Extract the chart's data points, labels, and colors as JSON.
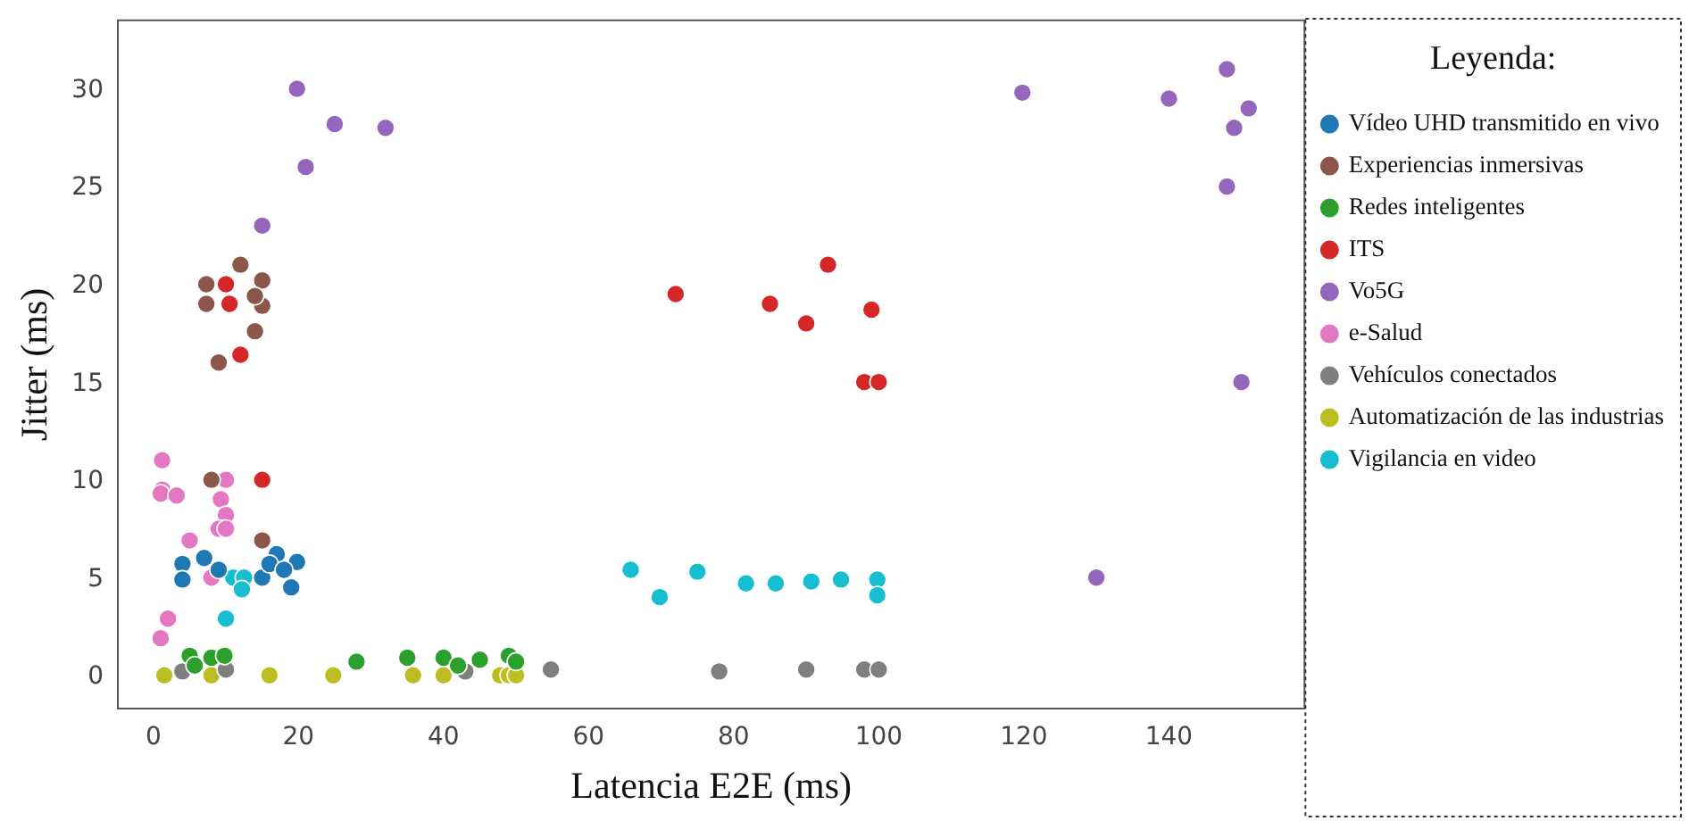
{
  "chart_data": {
    "type": "scatter",
    "xlabel": "Latencia E2E (ms)",
    "ylabel": "Jitter (ms)",
    "legend_title": "Leyenda:",
    "legend": "right",
    "grid": false,
    "marker": "circle",
    "xlim": [
      -4.9,
      158.7
    ],
    "ylim": [
      -1.6,
      33.6
    ],
    "xticks": [
      0,
      20,
      40,
      60,
      80,
      100,
      120,
      140
    ],
    "yticks": [
      0,
      5,
      10,
      15,
      20,
      25,
      30
    ],
    "series": [
      {
        "name": "Vídeo UHD transmitido en vivo",
        "color": "#1f77b4",
        "x": [
          4,
          7,
          4,
          9,
          15,
          17,
          16,
          19.8,
          19,
          18
        ],
        "values": [
          5.8,
          6.1,
          5.0,
          5.5,
          5.1,
          6.3,
          5.8,
          5.9,
          4.6,
          5.5
        ]
      },
      {
        "name": "Experiencias inmersivas",
        "color": "#8c564b",
        "x": [
          12,
          7.3,
          15,
          7.3,
          15,
          14,
          14,
          9,
          8,
          15
        ],
        "values": [
          21.1,
          20.1,
          20.3,
          19.1,
          19,
          19.5,
          17.7,
          16.1,
          10.1,
          7.0
        ]
      },
      {
        "name": "Redes inteligentes",
        "color": "#2ca02c",
        "x": [
          5,
          5.7,
          8,
          9.8,
          28,
          35,
          40,
          42,
          45,
          49,
          50
        ],
        "values": [
          1.1,
          0.6,
          1.0,
          1.1,
          0.8,
          1.0,
          1.0,
          0.6,
          0.9,
          1.1,
          0.8
        ]
      },
      {
        "name": "ITS",
        "color": "#d62728",
        "x": [
          72,
          85,
          93,
          90,
          99,
          98,
          100,
          10,
          10.5,
          12,
          15
        ],
        "values": [
          19.6,
          19.1,
          21.1,
          18.1,
          18.8,
          15.1,
          15.1,
          20.1,
          19.1,
          16.5,
          10.1
        ]
      },
      {
        "name": "Vo5G",
        "color": "#9467bd",
        "x": [
          19.8,
          25,
          32,
          21,
          15,
          119.8,
          140,
          148,
          151,
          149,
          148,
          150,
          130
        ],
        "values": [
          30.1,
          28.3,
          28.1,
          26.1,
          23.1,
          29.9,
          29.6,
          31.1,
          29.1,
          28.1,
          25.1,
          15.1,
          5.1
        ]
      },
      {
        "name": "e-Salud",
        "color": "#e377c2",
        "x": [
          1.2,
          1.2,
          1,
          3.2,
          10,
          9.3,
          10,
          9,
          10,
          5,
          8,
          2,
          1
        ],
        "values": [
          11.1,
          9.6,
          9.4,
          9.3,
          10.1,
          9.1,
          8.3,
          7.6,
          7.6,
          7,
          5.1,
          3,
          2
        ]
      },
      {
        "name": "Vehículos conectados",
        "color": "#7f7f7f",
        "x": [
          78,
          90,
          98,
          100,
          54.8,
          4,
          10,
          43
        ],
        "values": [
          0.3,
          0.4,
          0.4,
          0.4,
          0.4,
          0.3,
          0.4,
          0.3
        ]
      },
      {
        "name": "Automatización de las industrias",
        "color": "#bcbd22",
        "x": [
          1.5,
          8,
          16,
          24.8,
          35.8,
          40,
          47.8,
          49,
          50
        ],
        "values": [
          0.1,
          0.1,
          0.1,
          0.1,
          0.1,
          0.1,
          0.1,
          0.1,
          0.1
        ]
      },
      {
        "name": "Vigilancia en video",
        "color": "#17becf",
        "x": [
          11,
          12.5,
          12.2,
          10,
          65.8,
          69.8,
          75,
          81.7,
          85.8,
          90.7,
          94.8,
          99.8,
          99.8
        ],
        "values": [
          5.1,
          5.1,
          4.5,
          3,
          5.5,
          4.1,
          5.4,
          4.8,
          4.8,
          4.9,
          5.0,
          5.0,
          4.2
        ]
      }
    ]
  }
}
